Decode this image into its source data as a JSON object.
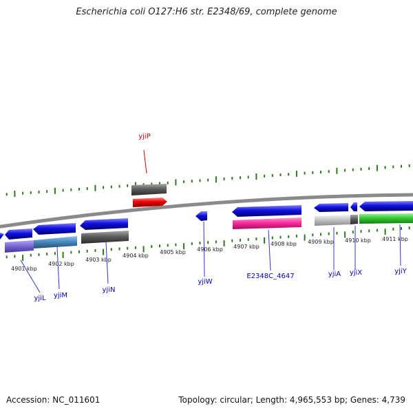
{
  "title": "Escherichia coli O127:H6 str. E2348/69, complete genome",
  "footer": {
    "accession": "Accession: NC_011601",
    "topology": "Topology: circular; Length: 4,965,553 bp; Genes: 4,739"
  },
  "scale_ticks": [
    {
      "label": "4901 kbp"
    },
    {
      "label": "4902 kbp"
    },
    {
      "label": "4903 kbp"
    },
    {
      "label": "4904 kbp"
    },
    {
      "label": "4905 kbp"
    },
    {
      "label": "4906 kbp"
    },
    {
      "label": "4907 kbp"
    },
    {
      "label": "4908 kbp"
    },
    {
      "label": "4909 kbp"
    },
    {
      "label": "4910 kbp"
    },
    {
      "label": "4911 kbp"
    }
  ],
  "gene_labels": [
    {
      "name": "yjiP",
      "color": "#d40000"
    },
    {
      "name": "yjiL",
      "color": "#0000b0"
    },
    {
      "name": "yjiM",
      "color": "#0000b0"
    },
    {
      "name": "yjiN",
      "color": "#0000b0"
    },
    {
      "name": "yjiW",
      "color": "#0000b0"
    },
    {
      "name": "E2348C_4647",
      "color": "#0000b0"
    },
    {
      "name": "yjiA",
      "color": "#0000b0"
    },
    {
      "name": "yjiX",
      "color": "#0000b0"
    },
    {
      "name": "yjiY",
      "color": "#0000b0"
    }
  ],
  "colors": {
    "backbone": "#8a8a8a",
    "tick": "#2a7a1a",
    "cds_blue": "#1010e0",
    "cds_red": "#ee0000",
    "dark_gray": "#5c5c5c",
    "light_gray": "#c4c4c4",
    "lavender": "#7a6ad8",
    "steel_blue": "#4a8ac0",
    "magenta": "#ff2aa0",
    "green": "#33cc33",
    "label_line": "#3333cc",
    "label_line_red": "#cc0000"
  }
}
